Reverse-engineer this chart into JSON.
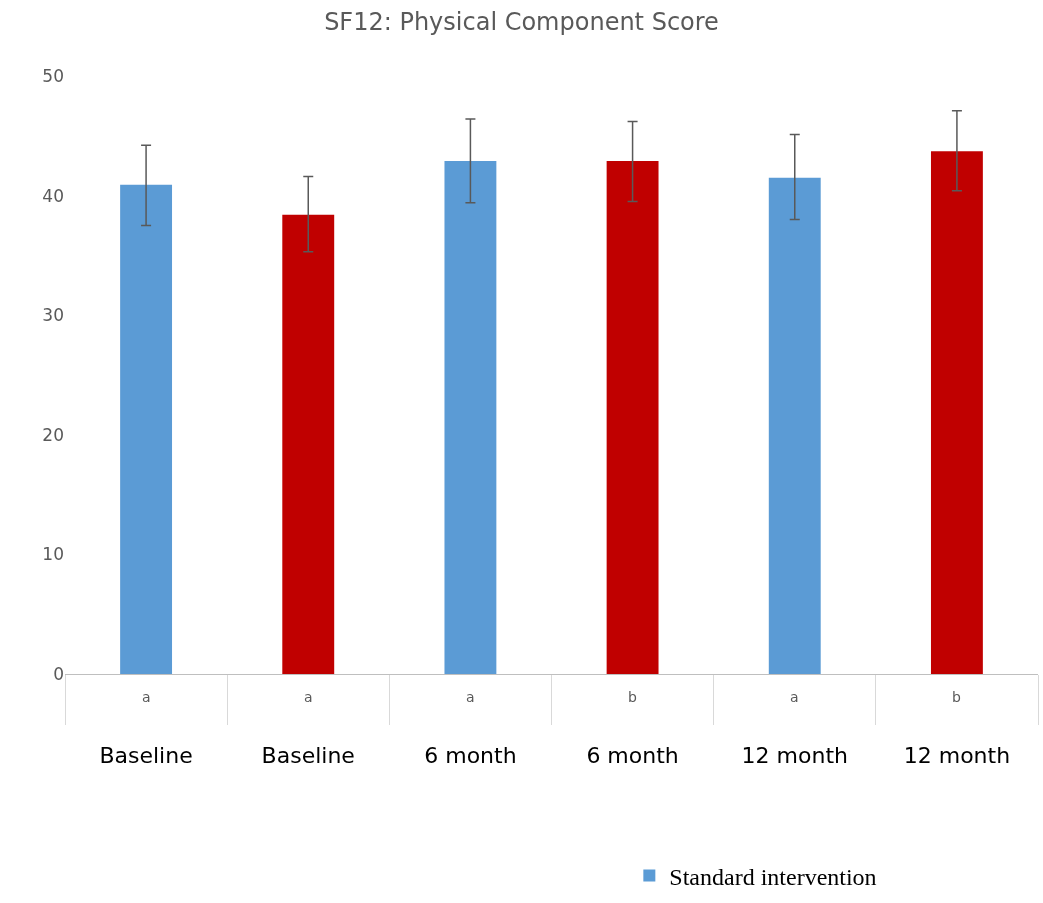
{
  "chart_data": {
    "type": "bar",
    "title": "SF12: Physical Component Score",
    "categories": [
      "Baseline",
      "Baseline",
      "6 month",
      "6 month",
      "12 month",
      "12 month"
    ],
    "series": [
      {
        "name": "Standard intervention",
        "color": "#5b9bd5",
        "values": [
          40.9,
          null,
          42.9,
          null,
          41.5,
          null
        ],
        "errors": [
          [
            37.5,
            44.2
          ],
          null,
          [
            39.4,
            46.4
          ],
          null,
          [
            38.0,
            45.1
          ],
          null
        ]
      },
      {
        "color": "#c00000",
        "values": [
          null,
          38.4,
          null,
          42.9,
          null,
          43.7
        ],
        "errors": [
          null,
          [
            35.3,
            41.6
          ],
          null,
          [
            39.5,
            46.2
          ],
          null,
          [
            40.4,
            47.1
          ]
        ]
      }
    ],
    "annotations": [
      "a",
      "a",
      "a",
      "b",
      "a",
      "b"
    ],
    "ylim": [
      0,
      50
    ],
    "yticks": [
      0,
      10,
      20,
      30,
      40,
      50
    ],
    "legend": "bottom"
  }
}
